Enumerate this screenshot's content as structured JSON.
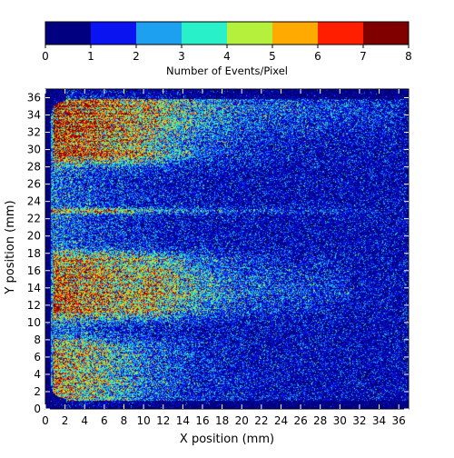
{
  "chart_data": {
    "type": "heatmap",
    "title": "",
    "colorbar": {
      "label": "Number of Events/Pixel",
      "range": [
        0,
        8
      ],
      "ticks": [
        "0",
        "1",
        "2",
        "3",
        "4",
        "5",
        "6",
        "7",
        "8"
      ],
      "colors": [
        "#000080",
        "#0a14f0",
        "#1ea0f0",
        "#28f0c8",
        "#b4f03c",
        "#ffaa00",
        "#ff1e00",
        "#800000"
      ]
    },
    "xlabel": "X position (mm)",
    "ylabel": "Y position (mm)",
    "xlim": [
      0,
      37
    ],
    "ylim": [
      0,
      37
    ],
    "xticks": [
      "0",
      "2",
      "4",
      "6",
      "8",
      "10",
      "12",
      "14",
      "16",
      "18",
      "20",
      "22",
      "24",
      "26",
      "28",
      "30",
      "32",
      "34",
      "36"
    ],
    "yticks": [
      "0",
      "2",
      "4",
      "6",
      "8",
      "10",
      "12",
      "14",
      "16",
      "18",
      "20",
      "22",
      "24",
      "26",
      "28",
      "30",
      "32",
      "34",
      "36"
    ],
    "background_level": 0.6,
    "features": [
      {
        "kind": "bright band",
        "y_range": [
          29.5,
          35.8
        ],
        "x_range": [
          0.8,
          9.5
        ],
        "peak_events": 6
      },
      {
        "kind": "bright band",
        "y_range": [
          11.5,
          17
        ],
        "x_range": [
          0.8,
          11
        ],
        "peak_events": 5
      },
      {
        "kind": "bright band",
        "y_range": [
          1,
          7
        ],
        "x_range": [
          0.8,
          6
        ],
        "peak_events": 4
      },
      {
        "kind": "horizontal line",
        "y": 22.9,
        "x_range": [
          0.5,
          37
        ],
        "peak_events": 4
      },
      {
        "kind": "faint stripes",
        "y": 34.5,
        "x_range": [
          10,
          36
        ],
        "peak_events": 2
      },
      {
        "kind": "faint stripes",
        "y": 14,
        "x_range": [
          10,
          31
        ],
        "peak_events": 2
      }
    ]
  }
}
